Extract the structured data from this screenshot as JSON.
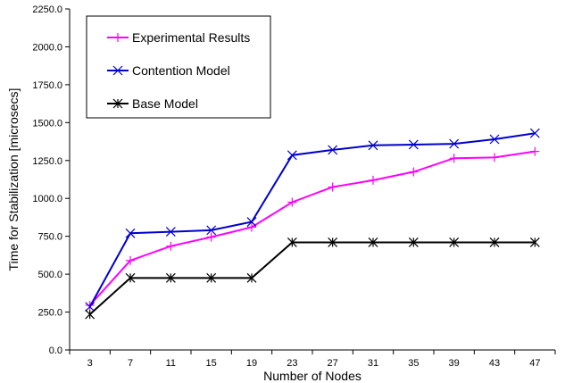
{
  "chart_data": {
    "type": "line",
    "title": "",
    "xlabel": "Number of Nodes",
    "ylabel": "Time for Stabilization [microsecs]",
    "x": [
      3,
      7,
      11,
      15,
      19,
      23,
      27,
      31,
      35,
      39,
      43,
      47
    ],
    "x_tick_labels": [
      "3",
      "7",
      "11",
      "15",
      "19",
      "23",
      "27",
      "31",
      "35",
      "39",
      "43",
      "47"
    ],
    "ylim": [
      0,
      2250
    ],
    "y_ticks": [
      0,
      250,
      500,
      750,
      1000,
      1250,
      1500,
      1750,
      2000,
      2250
    ],
    "y_tick_labels": [
      "0.0",
      "250.0",
      "500.0",
      "750.0",
      "1000.0",
      "1250.0",
      "1500.0",
      "1750.0",
      "2000.0",
      "2250.0"
    ],
    "grid": false,
    "legend_position": "top-left",
    "series": [
      {
        "name": "Experimental Results",
        "color": "#ff00ff",
        "marker": "plus",
        "values": [
          295,
          590,
          685,
          745,
          810,
          975,
          1075,
          1120,
          1175,
          1265,
          1270,
          1310
        ]
      },
      {
        "name": "Contention Model",
        "color": "#0000cc",
        "marker": "x",
        "values": [
          285,
          770,
          780,
          790,
          845,
          1285,
          1320,
          1350,
          1355,
          1360,
          1390,
          1430
        ]
      },
      {
        "name": "Base Model",
        "color": "#000000",
        "marker": "star",
        "values": [
          235,
          475,
          475,
          475,
          475,
          710,
          710,
          710,
          710,
          710,
          710,
          710
        ]
      }
    ]
  }
}
